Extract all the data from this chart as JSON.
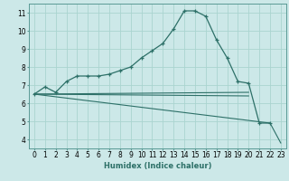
{
  "xlabel": "Humidex (Indice chaleur)",
  "bg_color": "#cce8e8",
  "grid_color": "#aad4d0",
  "line_color": "#2d7068",
  "ylim": [
    3.5,
    11.5
  ],
  "xlim": [
    -0.5,
    23.5
  ],
  "yticks": [
    4,
    5,
    6,
    7,
    8,
    9,
    10,
    11
  ],
  "xticks": [
    0,
    1,
    2,
    3,
    4,
    5,
    6,
    7,
    8,
    9,
    10,
    11,
    12,
    13,
    14,
    15,
    16,
    17,
    18,
    19,
    20,
    21,
    22,
    23
  ],
  "line1_x": [
    0,
    1,
    2,
    3,
    4,
    5,
    6,
    7,
    8,
    9,
    10,
    11,
    12,
    13,
    14,
    15,
    16,
    17,
    18,
    19,
    20,
    21,
    22
  ],
  "line1_y": [
    6.5,
    6.9,
    6.6,
    7.2,
    7.5,
    7.5,
    7.5,
    7.6,
    7.8,
    8.0,
    8.5,
    8.9,
    9.3,
    10.1,
    11.1,
    11.1,
    10.8,
    9.5,
    8.5,
    7.2,
    7.1,
    4.9,
    4.9
  ],
  "line2_x": [
    0,
    20
  ],
  "line2_y": [
    6.5,
    6.4
  ],
  "line3_x": [
    0,
    20
  ],
  "line3_y": [
    6.5,
    6.6
  ],
  "line4_x": [
    0,
    22,
    23
  ],
  "line4_y": [
    6.5,
    4.9,
    3.8
  ],
  "xlabel_fontsize": 6,
  "tick_fontsize": 5.5
}
